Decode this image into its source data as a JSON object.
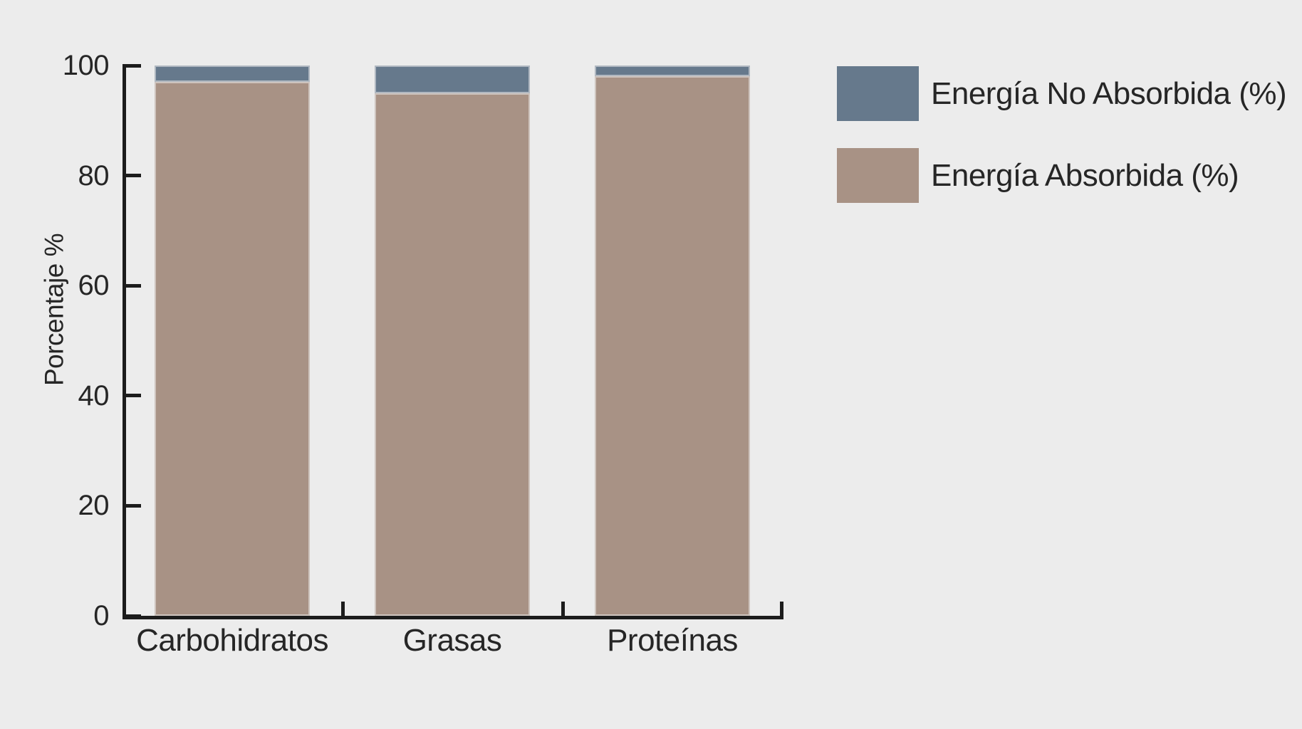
{
  "background_color": "#ECECEC",
  "chart_data": {
    "type": "bar",
    "stacked": true,
    "orientation": "vertical",
    "categories": [
      "Carbohidratos",
      "Grasas",
      "Proteínas"
    ],
    "series": [
      {
        "name": "Energía Absorbida (%)",
        "color": "#A89285",
        "values": [
          97,
          95,
          98
        ]
      },
      {
        "name": "Energía No Absorbida (%)",
        "color": "#66798C",
        "values": [
          3,
          5,
          2
        ]
      }
    ],
    "title": "",
    "xlabel": "",
    "ylabel": "Porcentaje %",
    "ylim": [
      0,
      100
    ],
    "yticks": [
      0,
      20,
      40,
      60,
      80,
      100
    ],
    "grid": false,
    "legend_position": "upper right",
    "legend": {
      "items": [
        {
          "label": "Energía No Absorbida (%)",
          "color": "#66798C"
        },
        {
          "label": "Energía Absorbida (%)",
          "color": "#A89285"
        }
      ]
    },
    "axis_color": "#1C1C1C",
    "text_color": "#262626"
  }
}
